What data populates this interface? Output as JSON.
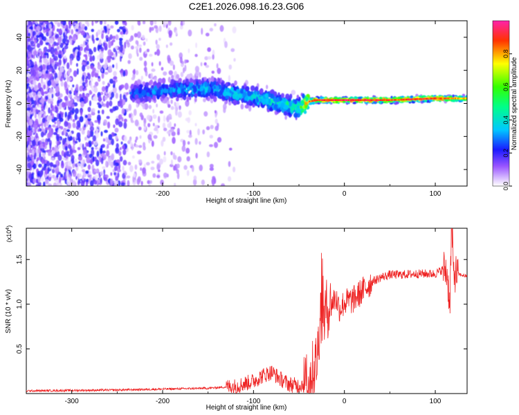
{
  "title": "C2E1.2026.098.16.23.G06",
  "chart_data": [
    {
      "type": "heatmap",
      "title": "C2E1.2026.098.16.23.G06",
      "xlabel": "Height of straight line (km)",
      "ylabel": "Frequency (Hz)",
      "xlim": [
        -350,
        135
      ],
      "ylim": [
        -50,
        50
      ],
      "x_ticks": [
        -300,
        -200,
        -100,
        0,
        100
      ],
      "y_ticks": [
        -40,
        -20,
        0,
        20,
        40
      ],
      "colorbar": {
        "label": "Normalized spectral amplitude",
        "range": [
          0,
          1
        ],
        "ticks": [
          0.0,
          0.2,
          0.4,
          0.6,
          0.8
        ]
      },
      "signal_track": {
        "description_x": [
          -235,
          -200,
          -150,
          -100,
          -70,
          -50,
          -40,
          -30,
          0,
          50,
          100,
          135
        ],
        "frequency_hz": [
          6,
          8,
          9,
          4,
          0,
          -3,
          1,
          2,
          2,
          2,
          3,
          3
        ],
        "peak_amplitude": [
          0.3,
          0.35,
          0.4,
          0.45,
          0.5,
          0.55,
          0.9,
          0.95,
          1.0,
          0.95,
          0.95,
          0.8
        ]
      }
    },
    {
      "type": "line",
      "xlabel": "Height of straight line (km)",
      "ylabel": "SNR (10 * v/v)",
      "y_multiplier": "(x10",
      "y_multiplier_exp": "4",
      "y_multiplier_close": ")",
      "xlim": [
        -350,
        135
      ],
      "ylim": [
        0,
        1.85
      ],
      "x_ticks": [
        -300,
        -200,
        -100,
        0,
        100
      ],
      "y_ticks": [
        0.5,
        1.0,
        1.5
      ],
      "y_tick_labels": [
        "0.5",
        "1.0",
        "1.5"
      ],
      "series": [
        {
          "name": "SNR",
          "color": "#ee2222",
          "x": [
            -350,
            -300,
            -250,
            -200,
            -150,
            -120,
            -100,
            -90,
            -80,
            -70,
            -60,
            -50,
            -40,
            -30,
            -25,
            -22,
            -20,
            -15,
            -10,
            -5,
            0,
            10,
            20,
            30,
            40,
            50,
            60,
            80,
            100,
            110,
            113,
            116,
            118,
            120,
            135
          ],
          "y": [
            0.03,
            0.035,
            0.04,
            0.05,
            0.06,
            0.08,
            0.14,
            0.2,
            0.24,
            0.16,
            0.1,
            0.09,
            0.13,
            0.38,
            1.1,
            0.85,
            0.95,
            0.98,
            1.08,
            0.95,
            1.02,
            1.05,
            1.15,
            1.25,
            1.3,
            1.33,
            1.33,
            1.34,
            1.34,
            1.4,
            1.35,
            1.0,
            1.9,
            1.35,
            1.31
          ]
        }
      ]
    }
  ]
}
